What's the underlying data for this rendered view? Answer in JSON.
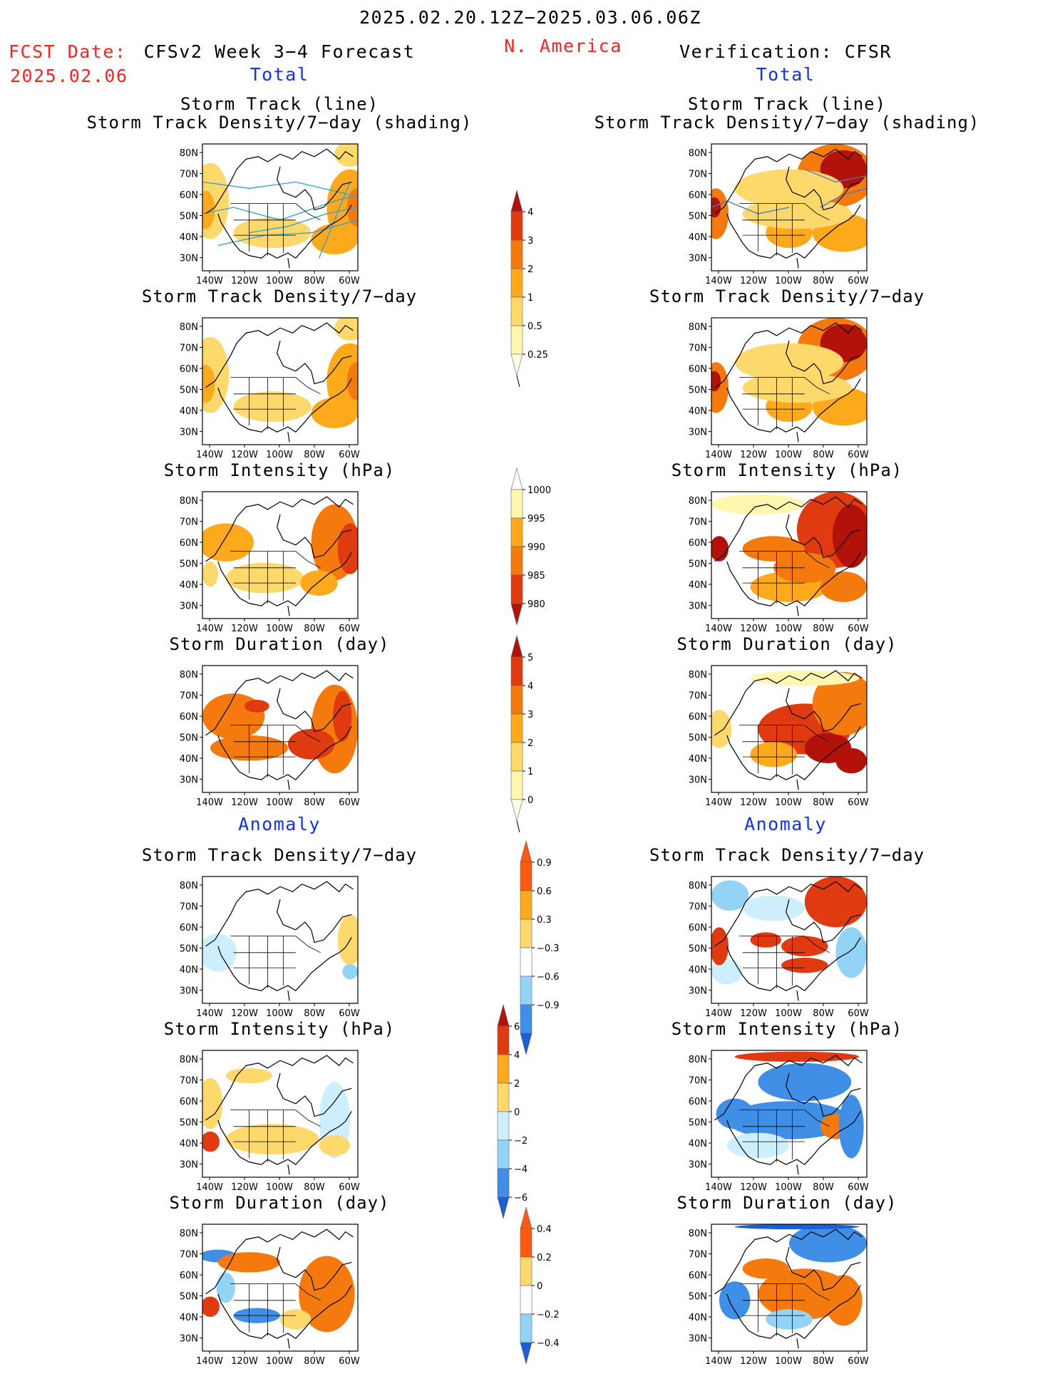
{
  "header": {
    "date_range": "2025.02.20.12Z−2025.03.06.06Z",
    "region": "N. America",
    "fcst_label": "FCST Date:",
    "fcst_date": "2025.02.06",
    "model_title": "CFSv2 Week 3−4 Forecast",
    "verification_title": "Verification: CFSR"
  },
  "sections": {
    "total_label": "Total",
    "anomaly_label": "Anomaly"
  },
  "panel_titles": {
    "storm_track_line": "Storm Track (line)",
    "storm_track_shading": "Storm Track Density/7−day (shading)",
    "storm_track_density": "Storm Track Density/7−day",
    "storm_intensity": "Storm Intensity (hPa)",
    "storm_duration": "Storm Duration (day)"
  },
  "axes": {
    "lat_ticks": [
      "80N",
      "70N",
      "60N",
      "50N",
      "40N",
      "30N"
    ],
    "lon_ticks": [
      "140W",
      "120W",
      "100W",
      "80W",
      "60W"
    ]
  },
  "colorbars": {
    "density": [
      "0.25",
      "0.5",
      "1",
      "2",
      "3",
      "4"
    ],
    "intensity": [
      "1000",
      "995",
      "990",
      "985",
      "980"
    ],
    "duration": [
      "0",
      "1",
      "2",
      "3",
      "4",
      "5"
    ],
    "density_anom": [
      "0.9",
      "0.6",
      "0.3",
      "−0.3",
      "−0.6",
      "−0.9"
    ],
    "intensity_anom": [
      "6",
      "4",
      "2",
      "0",
      "−2",
      "−4",
      "−6"
    ],
    "duration_anom": [
      "0.4",
      "0.2",
      "0",
      "−0.2",
      "−0.4"
    ]
  },
  "colors": {
    "title_red": "#ff2020",
    "section_blue": "#1030ff",
    "warm": [
      "#fff6b0",
      "#fdd86a",
      "#fcaa1c",
      "#f57a0e",
      "#e03a10",
      "#b2120a"
    ],
    "cool": [
      "#cdeffd",
      "#93d4f6",
      "#3f8fe6",
      "#1a5fd6"
    ]
  }
}
